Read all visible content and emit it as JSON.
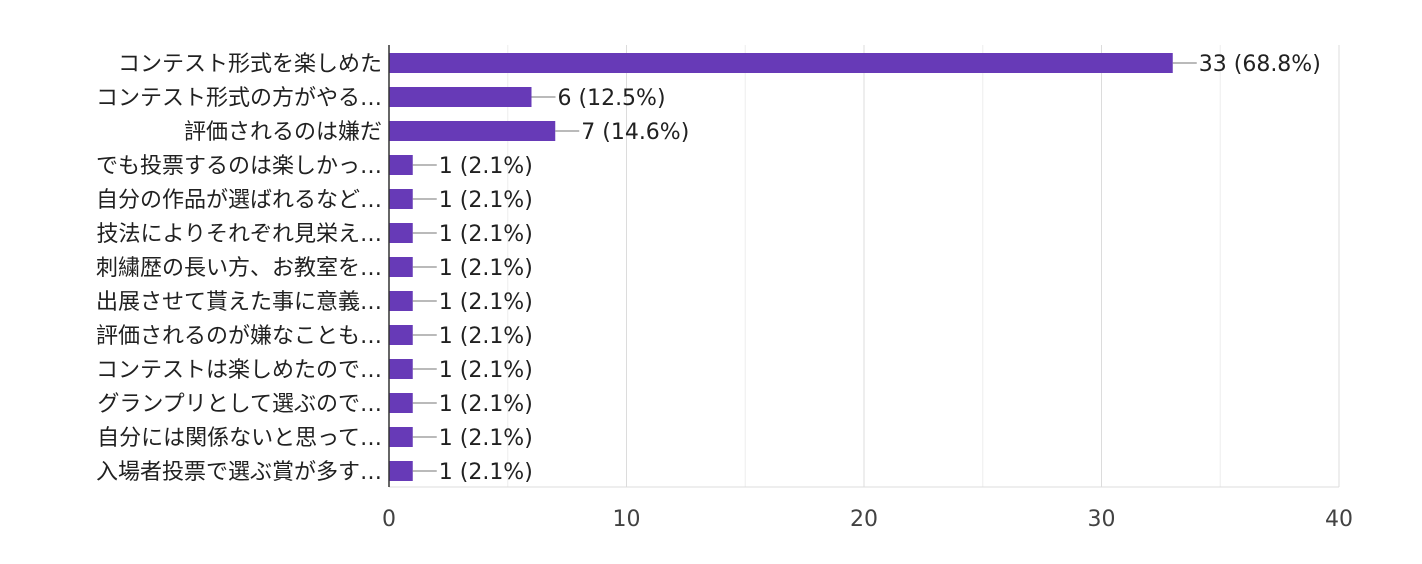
{
  "chart_data": {
    "type": "bar",
    "orientation": "horizontal",
    "categories": [
      "コンテスト形式を楽しめた",
      "コンテスト形式の方がやる…",
      "評価されるのは嫌だ",
      "でも投票するのは楽しかっ…",
      "自分の作品が選ばれるなど…",
      "技法によりそれぞれ見栄え…",
      "刺繍歴の長い方、お教室を…",
      "出展させて貰えた事に意義…",
      "評価されるのが嫌なことも…",
      "コンテストは楽しめたので…",
      "グランプリとして選ぶので…",
      "自分には関係ないと思って…",
      "入場者投票で選ぶ賞が多す…"
    ],
    "values": [
      33,
      6,
      7,
      1,
      1,
      1,
      1,
      1,
      1,
      1,
      1,
      1,
      1
    ],
    "value_labels": [
      "33 (68.8%)",
      "6 (12.5%)",
      "7 (14.6%)",
      "1 (2.1%)",
      "1 (2.1%)",
      "1 (2.1%)",
      "1 (2.1%)",
      "1 (2.1%)",
      "1 (2.1%)",
      "1 (2.1%)",
      "1 (2.1%)",
      "1 (2.1%)",
      "1 (2.1%)"
    ],
    "xlim": [
      0,
      40
    ],
    "xticks": [
      0,
      10,
      20,
      30,
      40
    ],
    "grid": true,
    "bar_color": "#673ab7",
    "title": "",
    "xlabel": "",
    "ylabel": ""
  }
}
